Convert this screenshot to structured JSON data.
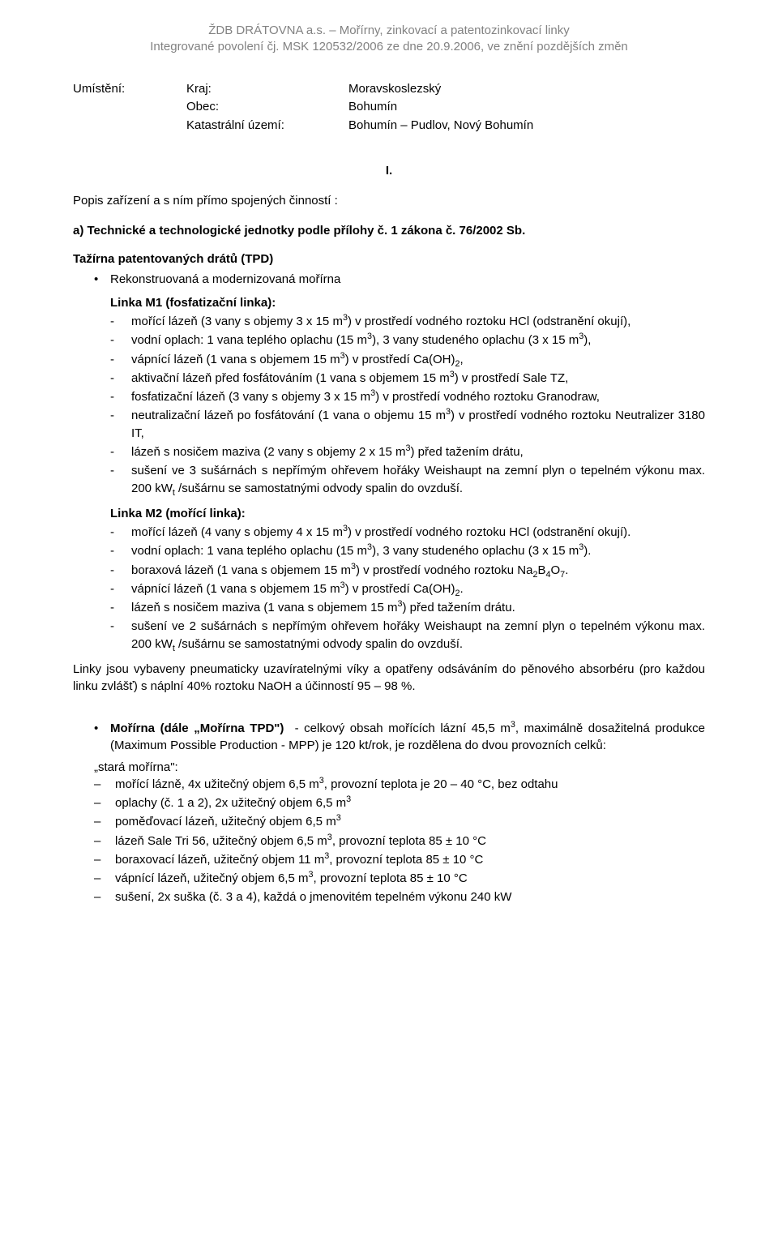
{
  "header": {
    "main": "ŽDB DRÁTOVNA a.s. – Mořírny, zinkovací a patentozinkovací linky",
    "sub": "Integrované povolení čj. MSK 120532/2006 ze dne 20.9.2006, ve znění pozdějších změn"
  },
  "location": {
    "label": "Umístění:",
    "rows": [
      {
        "k": "Kraj:",
        "v": "Moravskoslezský"
      },
      {
        "k": "Obec:",
        "v": "Bohumín"
      },
      {
        "k": "Katastrální území:",
        "v": "Bohumín – Pudlov, Nový Bohumín"
      }
    ]
  },
  "sectionRoman": "I.",
  "descTitle": "Popis zařízení a s ním přímo spojených činností :",
  "aLine": "a)  Technické a technologické jednotky podle přílohy č. 1 zákona č. 76/2002 Sb.",
  "tazirnaHead": "Tažírna patentovaných drátů (TPD)",
  "rekonstrBullet": "Rekonstruovaná a modernizovaná mořírna",
  "linkaM1": {
    "title": "Linka M1 (fosfatizační linka):",
    "items": [
      "mořící lázeň (3 vany s objemy 3 x 15 m<sup>3</sup>) v prostředí vodného roztoku HCl (odstranění okují),",
      "vodní oplach: 1 vana teplého oplachu (15 m<sup>3</sup>), 3 vany studeného oplachu (3 x 15 m<sup>3</sup>),",
      "vápnící lázeň (1 vana s objemem 15 m<sup>3</sup>) v prostředí Ca(OH)<sub>2</sub>,",
      "aktivační lázeň před fosfátováním (1 vana s objemem 15 m<sup>3</sup>) v prostředí Sale TZ,",
      "fosfatizační lázeň (3 vany s objemy 3 x 15 m<sup>3</sup>) v prostředí vodného roztoku Granodraw,",
      "neutralizační lázeň po fosfátování (1 vana o objemu 15 m<sup>3</sup>) v prostředí vodného roztoku Neutralizer 3180 IT,",
      "lázeň s nosičem maziva (2 vany s objemy 2 x 15 m<sup>3</sup>) před tažením drátu,",
      "sušení ve 3 sušárnách s nepřímým ohřevem hořáky Weishaupt na zemní plyn o tepelném výkonu max. 200 kW<sub>t</sub> /sušárnu se samostatnými odvody spalin do ovzduší."
    ]
  },
  "linkaM2": {
    "title": "Linka M2 (mořící linka):",
    "items": [
      "mořící lázeň (4 vany s objemy 4 x 15 m<sup>3</sup>) v prostředí vodného roztoku HCl (odstranění okují).",
      "vodní oplach: 1 vana teplého oplachu (15 m<sup>3</sup>), 3 vany studeného oplachu (3 x 15 m<sup>3</sup>).",
      "boraxová lázeň (1 vana s objemem 15 m<sup>3</sup>) v prostředí vodného roztoku Na<sub>2</sub>B<sub>4</sub>O<sub>7</sub>.",
      "vápnící lázeň (1 vana s objemem 15 m<sup>3</sup>) v prostředí Ca(OH)<sub>2</sub>.",
      "lázeň s nosičem maziva (1 vana s objemem 15 m<sup>3</sup>) před tažením drátu.",
      "sušení ve 2 sušárnách s nepřímým ohřevem hořáky Weishaupt na zemní plyn o tepelném výkonu max. 200 kW<sub>t</sub> /sušárnu se samostatnými odvody spalin do ovzduší."
    ]
  },
  "linkyPara": "Linky jsou vybaveny pneumaticky uzavíratelnými víky a opatřeny odsáváním do pěnového absorbéru (pro každou linku zvlášť) s náplní 40% roztoku NaOH a účinností 95 – 98 %.",
  "morirnaBullet": "<b>Mořírna (dále „Mořírna TPD\")</b> &nbsp;- celkový obsah mořících lázní 45,5 m<sup>3</sup>, maximálně dosažitelná produkce (Maximum Possible Production - MPP) je 120 kt/rok, je rozdělena do dvou provozních celků:",
  "staraMorirna": {
    "title": "„stará mořírna\":",
    "items": [
      "mořící lázně, 4x užitečný objem 6,5 m<sup>3</sup>, provozní teplota je 20 – 40 °C, bez odtahu",
      "oplachy (č. 1 a 2), 2x užitečný objem 6,5 m<sup>3</sup>",
      "poměďovací lázeň, užitečný objem 6,5 m<sup>3</sup>",
      "lázeň Sale Tri 56, užitečný objem 6,5 m<sup>3</sup>, provozní teplota 85 ± 10 °C",
      "boraxovací lázeň, užitečný objem 11 m<sup>3</sup>, provozní teplota 85 ± 10 °C",
      "vápnící lázeň, užitečný objem 6,5 m<sup>3</sup>, provozní teplota 85 ± 10 °C",
      "sušení, 2x suška (č. 3 a 4), každá o jmenovitém tepelném výkonu 240 kW"
    ]
  }
}
